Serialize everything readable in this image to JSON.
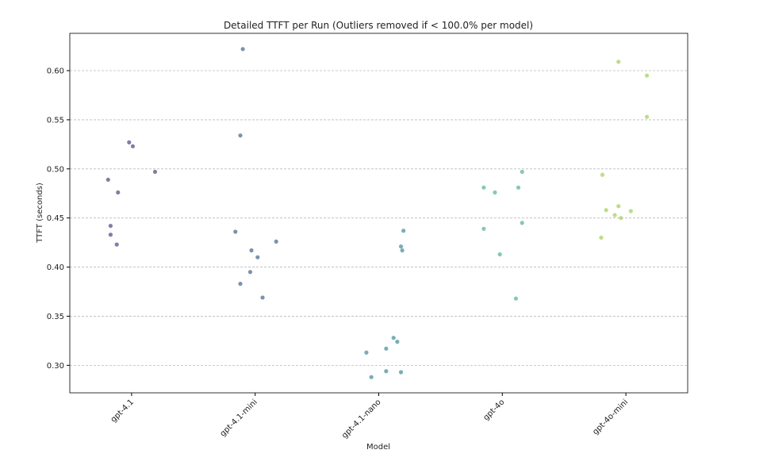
{
  "chart_data": {
    "type": "strip",
    "title": "Detailed TTFT per Run (Outliers removed if < 100.0% per model)",
    "xlabel": "Model",
    "ylabel": "TTFT (seconds)",
    "categories": [
      "gpt-4.1",
      "gpt-4.1-mini",
      "gpt-4.1-nano",
      "gpt-4o",
      "gpt-4o-mini"
    ],
    "colors": [
      "#7a6d9c",
      "#6a87a6",
      "#6ba4ab",
      "#79c3a8",
      "#b7d97a"
    ],
    "values": [
      [
        0.489,
        0.476,
        0.527,
        0.523,
        0.497,
        0.442,
        0.433,
        0.423
      ],
      [
        0.622,
        0.534,
        0.436,
        0.417,
        0.41,
        0.426,
        0.395,
        0.383,
        0.369
      ],
      [
        0.437,
        0.421,
        0.417,
        0.313,
        0.317,
        0.328,
        0.324,
        0.294,
        0.288,
        0.293
      ],
      [
        0.481,
        0.476,
        0.481,
        0.497,
        0.439,
        0.445,
        0.413,
        0.368
      ],
      [
        0.609,
        0.595,
        0.553,
        0.494,
        0.458,
        0.462,
        0.453,
        0.45,
        0.457,
        0.43
      ]
    ],
    "ylim": [
      0.272,
      0.638
    ],
    "yticks": [
      {
        "value": 0.3,
        "label": "0.30"
      },
      {
        "value": 0.35,
        "label": "0.35"
      },
      {
        "value": 0.4,
        "label": "0.40"
      },
      {
        "value": 0.45,
        "label": "0.45"
      },
      {
        "value": 0.5,
        "label": "0.50"
      },
      {
        "value": 0.55,
        "label": "0.55"
      },
      {
        "value": 0.6,
        "label": "0.60"
      }
    ],
    "grid": true
  }
}
